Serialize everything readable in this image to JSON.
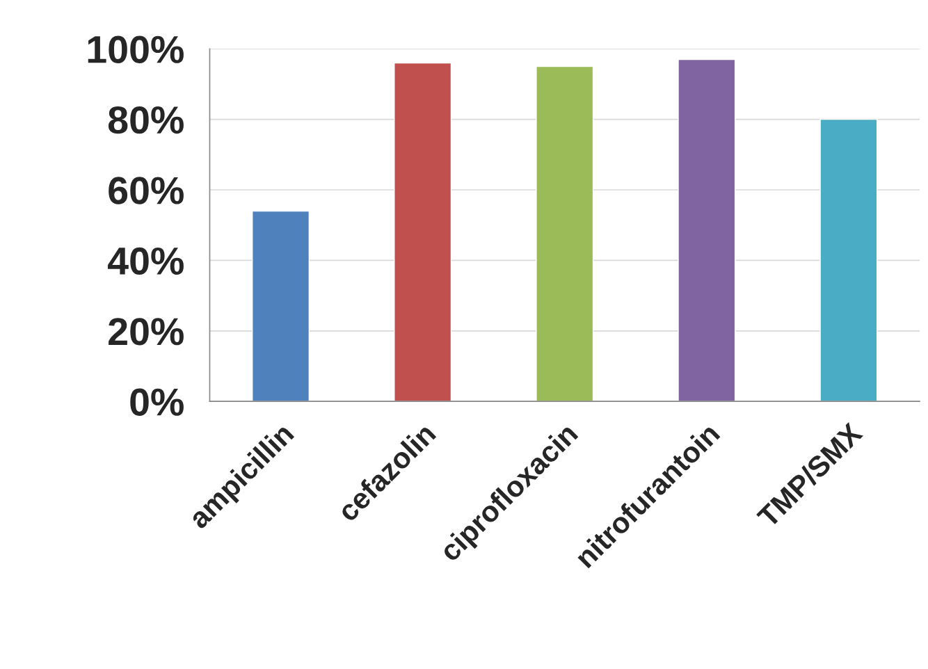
{
  "chart_data": {
    "type": "bar",
    "categories": [
      "ampicillin",
      "cefazolin",
      "ciprofloxacin",
      "nitrofurantoin",
      "TMP/SMX"
    ],
    "values": [
      54,
      96,
      95,
      97,
      80
    ],
    "colors": [
      "#4f81bd",
      "#c0504d",
      "#9bbb59",
      "#8064a2",
      "#4bacc6"
    ],
    "ylim": [
      0,
      100
    ],
    "yticks": [
      {
        "value": 0,
        "label": "0%"
      },
      {
        "value": 20,
        "label": "20%"
      },
      {
        "value": 40,
        "label": "40%"
      },
      {
        "value": 60,
        "label": "60%"
      },
      {
        "value": 80,
        "label": "80%"
      },
      {
        "value": 100,
        "label": "100%"
      }
    ],
    "grid": "y",
    "legend": false
  }
}
